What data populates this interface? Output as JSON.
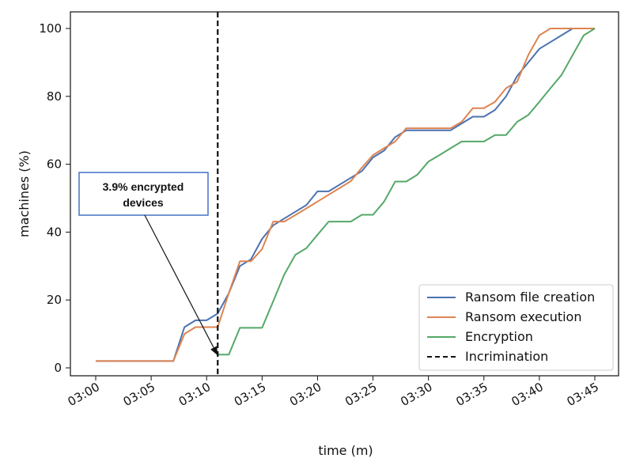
{
  "chart_data": {
    "type": "line",
    "xlabel": "time (m)",
    "ylabel": "machines (%)",
    "xlim": [
      "03:00",
      "03:45"
    ],
    "ylim": [
      0,
      100
    ],
    "grid": false,
    "legend_position": "bottom-right",
    "x_ticks": [
      "03:00",
      "03:05",
      "03:10",
      "03:15",
      "03:20",
      "03:25",
      "03:30",
      "03:35",
      "03:40",
      "03:45"
    ],
    "y_ticks": [
      0,
      20,
      40,
      60,
      80,
      100
    ],
    "series": [
      {
        "name": "Ransom file creation",
        "color": "#4c72b0",
        "points": [
          [
            "03:00",
            2
          ],
          [
            "03:07",
            2
          ],
          [
            "03:08",
            12
          ],
          [
            "03:09",
            14
          ],
          [
            "03:10",
            14
          ],
          [
            "03:11",
            16
          ],
          [
            "03:12",
            22
          ],
          [
            "03:13",
            30
          ],
          [
            "03:14",
            32
          ],
          [
            "03:15",
            38
          ],
          [
            "03:16",
            42
          ],
          [
            "03:17",
            44
          ],
          [
            "03:18",
            46
          ],
          [
            "03:19",
            48
          ],
          [
            "03:20",
            52
          ],
          [
            "03:21",
            52
          ],
          [
            "03:22",
            54
          ],
          [
            "03:23",
            56
          ],
          [
            "03:24",
            58
          ],
          [
            "03:25",
            62
          ],
          [
            "03:26",
            64
          ],
          [
            "03:27",
            68
          ],
          [
            "03:28",
            70
          ],
          [
            "03:29",
            70
          ],
          [
            "03:30",
            70
          ],
          [
            "03:31",
            70
          ],
          [
            "03:32",
            70
          ],
          [
            "03:33",
            72
          ],
          [
            "03:34",
            74
          ],
          [
            "03:35",
            74
          ],
          [
            "03:36",
            76
          ],
          [
            "03:37",
            80
          ],
          [
            "03:38",
            86
          ],
          [
            "03:39",
            90
          ],
          [
            "03:40",
            94
          ],
          [
            "03:41",
            96
          ],
          [
            "03:42",
            98
          ],
          [
            "03:43",
            100
          ],
          [
            "03:45",
            100
          ]
        ]
      },
      {
        "name": "Ransom execution",
        "color": "#dd8452",
        "points": [
          [
            "03:00",
            2
          ],
          [
            "03:07",
            2
          ],
          [
            "03:08",
            10
          ],
          [
            "03:09",
            12
          ],
          [
            "03:10",
            12
          ],
          [
            "03:11",
            12
          ],
          [
            "03:12",
            22
          ],
          [
            "03:13",
            31.4
          ],
          [
            "03:14",
            31.4
          ],
          [
            "03:15",
            35
          ],
          [
            "03:16",
            43.1
          ],
          [
            "03:17",
            43.1
          ],
          [
            "03:18",
            45
          ],
          [
            "03:19",
            47
          ],
          [
            "03:20",
            49
          ],
          [
            "03:21",
            51
          ],
          [
            "03:22",
            53
          ],
          [
            "03:23",
            55
          ],
          [
            "03:24",
            59
          ],
          [
            "03:25",
            62.7
          ],
          [
            "03:26",
            64.7
          ],
          [
            "03:27",
            66.7
          ],
          [
            "03:28",
            70.6
          ],
          [
            "03:29",
            70.6
          ],
          [
            "03:30",
            70.6
          ],
          [
            "03:31",
            70.6
          ],
          [
            "03:32",
            70.6
          ],
          [
            "03:33",
            72.5
          ],
          [
            "03:34",
            76.5
          ],
          [
            "03:35",
            76.5
          ],
          [
            "03:36",
            78.4
          ],
          [
            "03:37",
            82.4
          ],
          [
            "03:38",
            84.3
          ],
          [
            "03:39",
            92.2
          ],
          [
            "03:40",
            98
          ],
          [
            "03:41",
            100
          ],
          [
            "03:45",
            100
          ]
        ]
      },
      {
        "name": "Encryption",
        "color": "#55a868",
        "points": [
          [
            "03:11",
            3.9
          ],
          [
            "03:12",
            3.9
          ],
          [
            "03:13",
            11.8
          ],
          [
            "03:14",
            11.8
          ],
          [
            "03:15",
            11.8
          ],
          [
            "03:16",
            19.6
          ],
          [
            "03:17",
            27.5
          ],
          [
            "03:18",
            33.3
          ],
          [
            "03:19",
            35.3
          ],
          [
            "03:20",
            39.2
          ],
          [
            "03:21",
            43.1
          ],
          [
            "03:22",
            43.1
          ],
          [
            "03:23",
            43.1
          ],
          [
            "03:24",
            45.1
          ],
          [
            "03:25",
            45.1
          ],
          [
            "03:26",
            49
          ],
          [
            "03:27",
            54.9
          ],
          [
            "03:28",
            54.9
          ],
          [
            "03:29",
            56.9
          ],
          [
            "03:30",
            60.8
          ],
          [
            "03:31",
            62.7
          ],
          [
            "03:32",
            64.7
          ],
          [
            "03:33",
            66.7
          ],
          [
            "03:34",
            66.7
          ],
          [
            "03:35",
            66.7
          ],
          [
            "03:36",
            68.6
          ],
          [
            "03:37",
            68.6
          ],
          [
            "03:38",
            72.5
          ],
          [
            "03:39",
            74.5
          ],
          [
            "03:40",
            78.4
          ],
          [
            "03:41",
            82.4
          ],
          [
            "03:42",
            86.3
          ],
          [
            "03:43",
            92.2
          ],
          [
            "03:44",
            98
          ],
          [
            "03:45",
            100
          ]
        ]
      }
    ],
    "vline": {
      "name": "Incrimination",
      "x": "03:11",
      "color": "#111111",
      "style": "dashed"
    },
    "annotation": {
      "text_lines": [
        "3.9% encrypted",
        "devices"
      ],
      "points_to": [
        "03:11",
        3.9
      ],
      "box_color": "#4472c4"
    }
  }
}
